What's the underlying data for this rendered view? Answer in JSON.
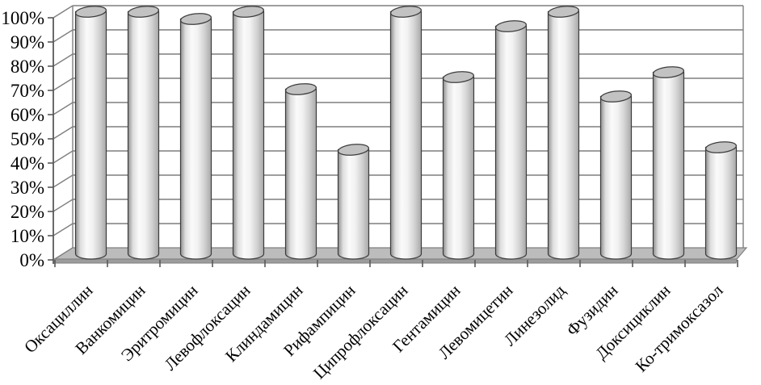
{
  "chart_data": {
    "type": "bar",
    "subtype": "3d-cylinder",
    "title": "",
    "xlabel": "",
    "ylabel": "",
    "categories": [
      "Оксациллин",
      "Ванкомицин",
      "Эритромицин",
      "Левофлоксацин",
      "Клиндамицин",
      "Рифампицин",
      "Ципрофлоксацин",
      "Гентамицин",
      "Левомицетин",
      "Линезолид",
      "Фузидин",
      "Доксициклин",
      "Ко-тримоксазол"
    ],
    "values": [
      100,
      100,
      97,
      100,
      68,
      43,
      100,
      73,
      94,
      100,
      65,
      75,
      44
    ],
    "y_ticks": [
      "0%",
      "10%",
      "20%",
      "30%",
      "40%",
      "50%",
      "60%",
      "70%",
      "80%",
      "90%",
      "100%"
    ],
    "ylim": [
      0,
      100
    ],
    "grid": true,
    "legend": false
  },
  "style": {
    "background": "#ffffff",
    "gridline_color": "#7f7f7f",
    "axis_color": "#595959",
    "tick_color": "#595959",
    "floor_top_color": "#bcbcbc",
    "floor_side_color": "#9c9c9c",
    "cylinder_top_color": "#c2c2c2",
    "cylinder_outline": "#3c3c3c",
    "cylinder_edge_dark": "#8f8f8f",
    "cylinder_body_light": "#fafafa",
    "cylinder_body_shadow": "#a8a8a8",
    "label_color": "#000000"
  }
}
